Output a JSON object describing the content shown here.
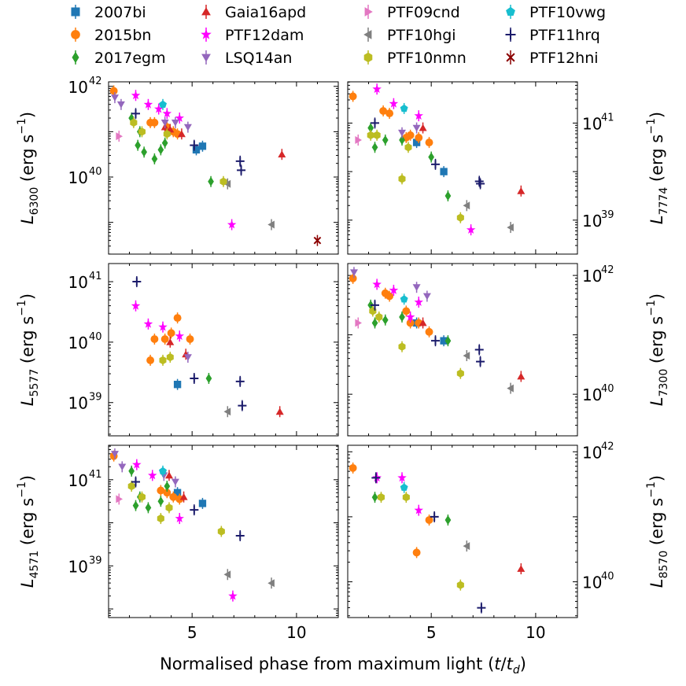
{
  "chart_data": {
    "type": "scatter",
    "xlabel_prefix": "Normalised phase from maximum light (",
    "xlabel_t": "t",
    "xlabel_slash": "/",
    "xlabel_td": "t",
    "xlabel_td_sub": "d",
    "xlabel_suffix": ")",
    "xlim": [
      1,
      12
    ],
    "xticks": [
      5,
      10
    ],
    "xtick_labels": [
      "5",
      "10"
    ],
    "legend": [
      {
        "name": "2007bi",
        "color": "#1f77b4",
        "marker": "square"
      },
      {
        "name": "2015bn",
        "color": "#ff7f0e",
        "marker": "circle"
      },
      {
        "name": "2017egm",
        "color": "#2ca02c",
        "marker": "diamond"
      },
      {
        "name": "Gaia16apd",
        "color": "#d62728",
        "marker": "triangle-up"
      },
      {
        "name": "PTF12dam",
        "color": "#ff00ff",
        "marker": "star"
      },
      {
        "name": "LSQ14an",
        "color": "#9467bd",
        "marker": "triangle-down"
      },
      {
        "name": "PTF09cnd",
        "color": "#e377c2",
        "marker": "triangle-right"
      },
      {
        "name": "PTF10hgi",
        "color": "#7f7f7f",
        "marker": "triangle-left"
      },
      {
        "name": "PTF10nmn",
        "color": "#bcbd22",
        "marker": "hexagon"
      },
      {
        "name": "PTF10vwg",
        "color": "#17becf",
        "marker": "pentagon"
      },
      {
        "name": "PTF11hrq",
        "color": "#1b1b6b",
        "marker": "plus"
      },
      {
        "name": "PTF12hni",
        "color": "#8b0000",
        "marker": "x"
      }
    ],
    "panels": [
      {
        "id": "6300",
        "label_sub": "6300",
        "side": "left",
        "ylim_log": [
          38.3,
          42.1
        ],
        "ticks": [
          {
            "v": 40,
            "exp": "40"
          },
          {
            "v": 42,
            "exp": "42"
          }
        ],
        "series": {
          "2007bi": [
            [
              5.2,
              40.6
            ],
            [
              5.5,
              40.68
            ]
          ],
          "2015bn": [
            [
              1.25,
              41.9
            ],
            [
              3.0,
              41.2
            ],
            [
              3.2,
              41.2
            ],
            [
              3.8,
              41.1
            ],
            [
              4.1,
              41.0
            ],
            [
              4.3,
              40.95
            ]
          ],
          "2017egm": [
            [
              2.1,
              41.3
            ],
            [
              2.4,
              40.7
            ],
            [
              2.5,
              41.0
            ],
            [
              2.7,
              40.55
            ],
            [
              3.2,
              40.4
            ],
            [
              3.5,
              40.6
            ],
            [
              3.7,
              40.75
            ],
            [
              5.9,
              39.9
            ]
          ],
          "Gaia16apd": [
            [
              3.7,
              41.1
            ],
            [
              3.95,
              41.05
            ],
            [
              4.5,
              40.95
            ],
            [
              9.3,
              40.5
            ]
          ],
          "PTF12dam": [
            [
              2.3,
              41.8
            ],
            [
              2.9,
              41.6
            ],
            [
              3.4,
              41.5
            ],
            [
              3.8,
              41.4
            ],
            [
              4.4,
              41.3
            ],
            [
              6.9,
              38.95
            ]
          ],
          "LSQ14an": [
            [
              1.3,
              41.75
            ],
            [
              1.6,
              41.6
            ],
            [
              3.7,
              41.2
            ],
            [
              4.2,
              41.2
            ],
            [
              4.8,
              41.1
            ]
          ],
          "PTF09cnd": [
            [
              1.5,
              40.9
            ]
          ],
          "PTF10hgi": [
            [
              6.7,
              39.85
            ],
            [
              8.8,
              38.95
            ]
          ],
          "PTF10nmn": [
            [
              2.2,
              41.2
            ],
            [
              2.6,
              41.0
            ],
            [
              3.8,
              40.95
            ],
            [
              6.5,
              39.9
            ]
          ],
          "PTF10vwg": [
            [
              3.6,
              41.6
            ]
          ],
          "PTF11hrq": [
            [
              2.3,
              41.4
            ],
            [
              5.1,
              40.7
            ],
            [
              7.3,
              40.35
            ],
            [
              7.35,
              40.15
            ]
          ],
          "PTF12hni": [
            [
              11.0,
              38.6
            ]
          ]
        }
      },
      {
        "id": "7774",
        "label_sub": "7774",
        "side": "right",
        "ylim_log": [
          38.3,
          41.85
        ],
        "ticks": [
          {
            "v": 39,
            "exp": "39"
          },
          {
            "v": 41,
            "exp": "41"
          }
        ],
        "series": {
          "2007bi": [
            [
              4.3,
              40.6
            ],
            [
              5.6,
              40.0
            ]
          ],
          "2015bn": [
            [
              1.25,
              41.55
            ],
            [
              2.7,
              41.25
            ],
            [
              3.0,
              41.2
            ],
            [
              3.8,
              40.7
            ],
            [
              4.0,
              40.75
            ],
            [
              4.4,
              40.7
            ],
            [
              4.9,
              40.6
            ]
          ],
          "2017egm": [
            [
              2.1,
              40.9
            ],
            [
              2.3,
              40.5
            ],
            [
              2.8,
              40.65
            ],
            [
              3.6,
              40.65
            ],
            [
              5.0,
              40.3
            ],
            [
              5.8,
              39.5
            ]
          ],
          "Gaia16apd": [
            [
              4.6,
              40.9
            ],
            [
              9.3,
              39.6
            ]
          ],
          "PTF12dam": [
            [
              2.4,
              41.7
            ],
            [
              3.2,
              41.4
            ],
            [
              4.4,
              41.15
            ],
            [
              6.9,
              38.8
            ]
          ],
          "LSQ14an": [
            [
              3.6,
              40.8
            ],
            [
              4.3,
              40.9
            ]
          ],
          "PTF09cnd": [
            [
              1.5,
              40.65
            ]
          ],
          "PTF10hgi": [
            [
              6.7,
              39.3
            ],
            [
              8.8,
              38.85
            ]
          ],
          "PTF10nmn": [
            [
              2.1,
              40.75
            ],
            [
              2.4,
              40.75
            ],
            [
              3.6,
              39.85
            ],
            [
              3.9,
              40.5
            ],
            [
              6.4,
              39.05
            ]
          ],
          "PTF10vwg": [
            [
              3.7,
              41.3
            ]
          ],
          "PTF11hrq": [
            [
              2.3,
              41.0
            ],
            [
              5.2,
              40.15
            ],
            [
              7.3,
              39.8
            ],
            [
              7.35,
              39.75
            ]
          ],
          "PTF12hni": []
        }
      },
      {
        "id": "5577",
        "label_sub": "5577",
        "side": "left",
        "ylim_log": [
          38.45,
          41.3
        ],
        "ticks": [
          {
            "v": 39,
            "exp": "39"
          },
          {
            "v": 40,
            "exp": "40"
          },
          {
            "v": 41,
            "exp": "41"
          }
        ],
        "series": {
          "2007bi": [
            [
              4.3,
              39.3
            ]
          ],
          "2015bn": [
            [
              3.0,
              39.7
            ],
            [
              3.2,
              40.05
            ],
            [
              3.7,
              40.05
            ],
            [
              4.0,
              40.15
            ],
            [
              4.3,
              40.4
            ],
            [
              4.9,
              40.05
            ]
          ],
          "2017egm": [
            [
              5.8,
              39.4
            ]
          ],
          "Gaia16apd": [
            [
              3.95,
              40.0
            ],
            [
              4.7,
              39.8
            ],
            [
              9.2,
              38.85
            ]
          ],
          "PTF12dam": [
            [
              2.3,
              40.6
            ],
            [
              2.9,
              40.3
            ],
            [
              3.6,
              40.25
            ],
            [
              4.4,
              40.1
            ]
          ],
          "LSQ14an": [
            [
              4.8,
              39.75
            ]
          ],
          "PTF09cnd": [],
          "PTF10hgi": [
            [
              6.7,
              38.85
            ]
          ],
          "PTF10nmn": [
            [
              3.6,
              39.7
            ],
            [
              3.95,
              39.75
            ]
          ],
          "PTF10vwg": [],
          "PTF11hrq": [
            [
              2.35,
              41.0
            ],
            [
              5.1,
              39.4
            ],
            [
              7.3,
              39.35
            ],
            [
              7.4,
              38.95
            ]
          ],
          "PTF12hni": []
        }
      },
      {
        "id": "7300",
        "label_sub": "7300",
        "side": "right",
        "ylim_log": [
          39.3,
          42.2
        ],
        "ticks": [
          {
            "v": 40,
            "exp": "40"
          },
          {
            "v": 42,
            "exp": "42"
          }
        ],
        "series": {
          "2007bi": [
            [
              4.3,
              41.2
            ],
            [
              5.6,
              40.9
            ]
          ],
          "2015bn": [
            [
              1.25,
              41.95
            ],
            [
              2.8,
              41.7
            ],
            [
              3.0,
              41.65
            ],
            [
              3.8,
              41.4
            ],
            [
              4.0,
              41.2
            ],
            [
              4.4,
              41.2
            ],
            [
              4.9,
              41.05
            ]
          ],
          "2017egm": [
            [
              2.1,
              41.5
            ],
            [
              2.3,
              41.2
            ],
            [
              2.8,
              41.25
            ],
            [
              3.6,
              41.3
            ],
            [
              5.8,
              40.9
            ]
          ],
          "Gaia16apd": [
            [
              4.6,
              41.2
            ],
            [
              9.3,
              40.3
            ]
          ],
          "PTF12dam": [
            [
              2.4,
              41.85
            ],
            [
              3.2,
              41.75
            ],
            [
              4.4,
              41.55
            ],
            [
              4.0,
              41.3
            ]
          ],
          "LSQ14an": [
            [
              1.3,
              42.05
            ],
            [
              4.3,
              41.8
            ],
            [
              4.8,
              41.65
            ]
          ],
          "PTF09cnd": [
            [
              1.5,
              41.2
            ]
          ],
          "PTF10hgi": [
            [
              6.7,
              40.65
            ],
            [
              8.8,
              40.1
            ]
          ],
          "PTF10nmn": [
            [
              2.2,
              41.4
            ],
            [
              2.5,
              41.3
            ],
            [
              3.6,
              40.8
            ],
            [
              6.4,
              40.35
            ]
          ],
          "PTF10vwg": [
            [
              3.7,
              41.6
            ]
          ],
          "PTF11hrq": [
            [
              2.3,
              41.5
            ],
            [
              5.2,
              40.9
            ],
            [
              7.3,
              40.75
            ],
            [
              7.35,
              40.55
            ]
          ],
          "PTF12hni": []
        }
      },
      {
        "id": "4571",
        "label_sub": "4571",
        "side": "left",
        "ylim_log": [
          37.8,
          41.8
        ],
        "ticks": [
          {
            "v": 39,
            "exp": "39"
          },
          {
            "v": 41,
            "exp": "41"
          }
        ],
        "series": {
          "2007bi": [
            [
              4.3,
              40.7
            ],
            [
              5.5,
              40.45
            ]
          ],
          "2015bn": [
            [
              1.25,
              41.55
            ],
            [
              3.5,
              40.75
            ],
            [
              3.8,
              40.7
            ],
            [
              4.1,
              40.6
            ],
            [
              4.4,
              40.55
            ]
          ],
          "2017egm": [
            [
              2.1,
              41.2
            ],
            [
              2.3,
              40.4
            ],
            [
              2.5,
              40.6
            ],
            [
              2.9,
              40.35
            ],
            [
              3.5,
              40.5
            ],
            [
              3.8,
              40.85
            ]
          ],
          "Gaia16apd": [
            [
              3.9,
              41.1
            ],
            [
              4.6,
              40.6
            ]
          ],
          "PTF12dam": [
            [
              2.35,
              41.35
            ],
            [
              3.1,
              41.1
            ],
            [
              4.4,
              40.1
            ],
            [
              6.95,
              38.3
            ]
          ],
          "LSQ14an": [
            [
              1.3,
              41.6
            ],
            [
              1.65,
              41.3
            ],
            [
              3.65,
              41.1
            ],
            [
              4.2,
              40.95
            ]
          ],
          "PTF09cnd": [
            [
              1.5,
              40.55
            ]
          ],
          "PTF10hgi": [
            [
              6.7,
              38.8
            ],
            [
              8.8,
              38.6
            ]
          ],
          "PTF10nmn": [
            [
              2.1,
              40.85
            ],
            [
              2.6,
              40.6
            ],
            [
              3.5,
              40.1
            ],
            [
              3.9,
              40.35
            ],
            [
              6.4,
              39.8
            ]
          ],
          "PTF10vwg": [
            [
              3.6,
              41.2
            ]
          ],
          "PTF11hrq": [
            [
              2.3,
              40.95
            ],
            [
              5.1,
              40.3
            ],
            [
              7.3,
              39.7
            ]
          ],
          "PTF12hni": []
        }
      },
      {
        "id": "8570",
        "label_sub": "8570",
        "side": "right",
        "ylim_log": [
          39.45,
          42.1
        ],
        "ticks": [
          {
            "v": 40,
            "exp": "40"
          },
          {
            "v": 42,
            "exp": "42"
          }
        ],
        "series": {
          "2007bi": [],
          "2015bn": [
            [
              1.25,
              41.75
            ],
            [
              4.3,
              40.45
            ],
            [
              4.9,
              40.95
            ]
          ],
          "2017egm": [
            [
              2.3,
              41.3
            ],
            [
              5.8,
              40.95
            ]
          ],
          "Gaia16apd": [
            [
              9.3,
              40.2
            ]
          ],
          "PTF12dam": [
            [
              2.4,
              41.6
            ],
            [
              3.6,
              41.6
            ],
            [
              4.4,
              41.1
            ]
          ],
          "LSQ14an": [],
          "PTF09cnd": [],
          "PTF10hgi": [
            [
              6.7,
              40.55
            ]
          ],
          "PTF10nmn": [
            [
              2.6,
              41.3
            ],
            [
              3.8,
              41.3
            ],
            [
              6.4,
              39.95
            ]
          ],
          "PTF10vwg": [
            [
              3.7,
              41.45
            ]
          ],
          "PTF11hrq": [
            [
              2.35,
              41.6
            ],
            [
              5.15,
              41.0
            ],
            [
              7.4,
              39.6
            ]
          ],
          "PTF12hni": []
        }
      }
    ]
  }
}
